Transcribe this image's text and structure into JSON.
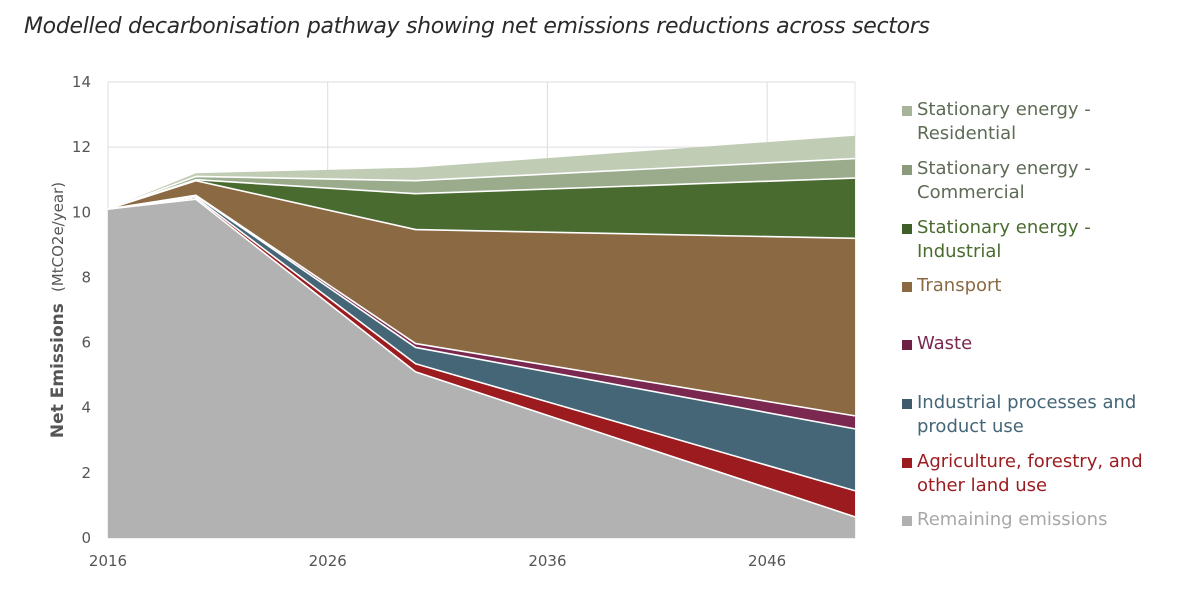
{
  "chart_data": {
    "type": "area",
    "stacked": true,
    "title": "Modelled decarbonisation pathway showing net emissions reductions across sectors",
    "ylabel": "Net Emissions",
    "ylabel_unit": "(MtCO2e/year)",
    "xlabel": "",
    "xlim": [
      2016,
      2050
    ],
    "ylim": [
      0,
      14
    ],
    "x_ticks": [
      2016,
      2026,
      2036,
      2046
    ],
    "y_ticks": [
      0,
      2,
      4,
      6,
      8,
      10,
      12,
      14
    ],
    "grid": true,
    "legend_position": "right",
    "x": [
      2016,
      2020,
      2030,
      2050
    ],
    "series": [
      {
        "name": "Remaining emissions",
        "color": "#b2b2b2",
        "values": [
          10.1,
          10.4,
          5.1,
          0.65
        ]
      },
      {
        "name": "Agriculture, forestry, and other land use",
        "color": "#9b1b1f",
        "values": [
          0.0,
          0.05,
          0.25,
          0.8
        ]
      },
      {
        "name": "Industrial processes and product use",
        "color": "#456677",
        "values": [
          0.0,
          0.05,
          0.5,
          1.9
        ]
      },
      {
        "name": "Waste",
        "color": "#7a2850",
        "values": [
          0.0,
          0.02,
          0.12,
          0.4
        ]
      },
      {
        "name": "Transport",
        "color": "#8b6a43",
        "values": [
          0.0,
          0.45,
          3.5,
          5.45
        ]
      },
      {
        "name": "Stationary energy - Industrial",
        "color": "#4a6b30",
        "values": [
          0.0,
          0.03,
          1.1,
          1.85
        ]
      },
      {
        "name": "Stationary energy - Commercial",
        "color": "#9aac8b",
        "values": [
          0.0,
          0.1,
          0.4,
          0.6
        ]
      },
      {
        "name": "Stationary energy - Residential",
        "color": "#c1ccb5",
        "values": [
          0.0,
          0.1,
          0.4,
          0.7
        ]
      }
    ]
  }
}
